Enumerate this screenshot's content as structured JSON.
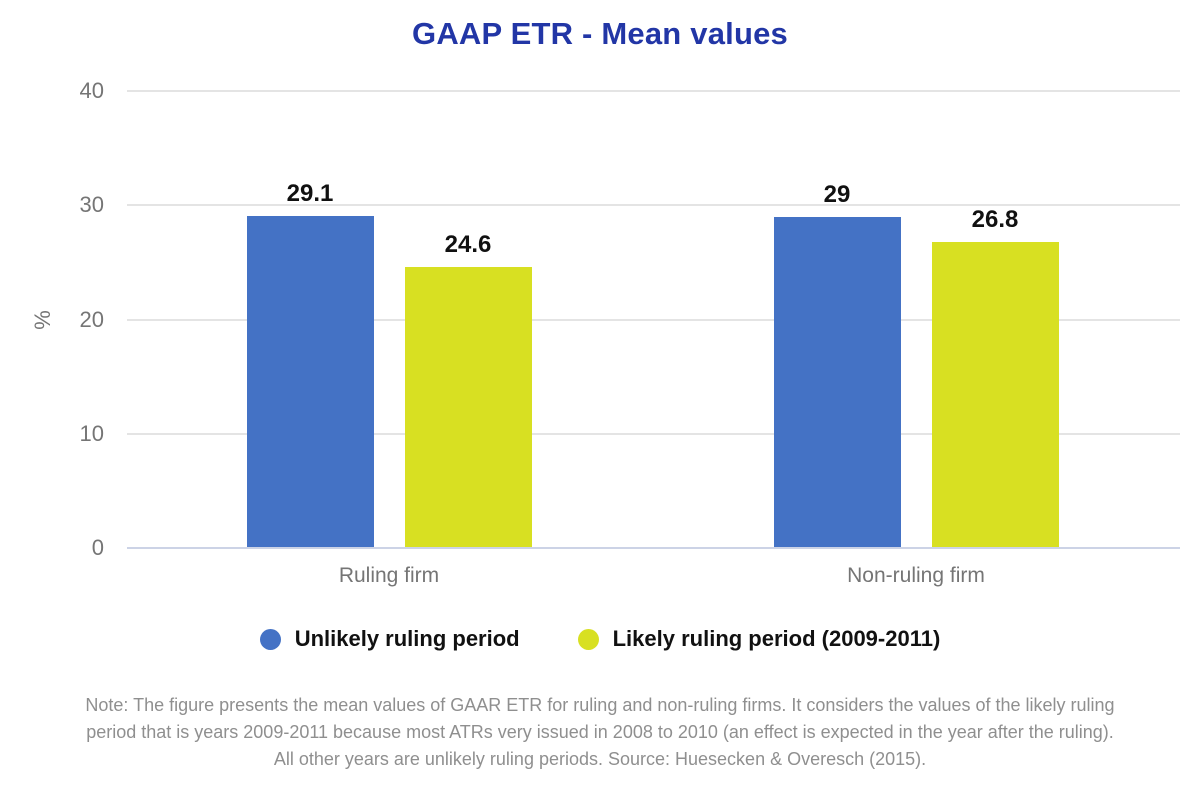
{
  "title": "GAAP ETR - Mean values",
  "colors": {
    "title": "#2236a6",
    "series_blue": "#4472c5",
    "series_yellow": "#d8e022",
    "axis_text": "#757575",
    "gridline": "#e4e4e4",
    "baseline": "#ccd3e6",
    "note_text": "#8f8f8f",
    "value_label": "#111111"
  },
  "chart_data": {
    "type": "bar",
    "title": "GAAP ETR - Mean values",
    "categories": [
      "Ruling firm",
      "Non-ruling firm"
    ],
    "series": [
      {
        "name": "Unlikely ruling period",
        "color": "#4472c5",
        "values": [
          29.1,
          29
        ]
      },
      {
        "name": "Likely ruling period (2009-2011)",
        "color": "#d8e022",
        "values": [
          24.6,
          26.8
        ]
      }
    ],
    "xlabel": "",
    "ylabel": "%",
    "ylim": [
      0,
      40
    ],
    "yticks": [
      0,
      10,
      20,
      30,
      40
    ],
    "grid": true,
    "legend_position": "bottom",
    "value_labels": [
      "29.1",
      "24.6",
      "29",
      "26.8"
    ]
  },
  "note": {
    "line1": "Note: The figure presents the mean values of GAAR ETR for ruling and non-ruling firms. It considers the values of the likely ruling",
    "line2": "period that is years 2009-2011 because most ATRs very issued in 2008 to 2010 (an effect is expected in the year after the ruling).",
    "line3": "All other years are unlikely ruling periods. Source: Huesecken & Overesch (2015)."
  }
}
